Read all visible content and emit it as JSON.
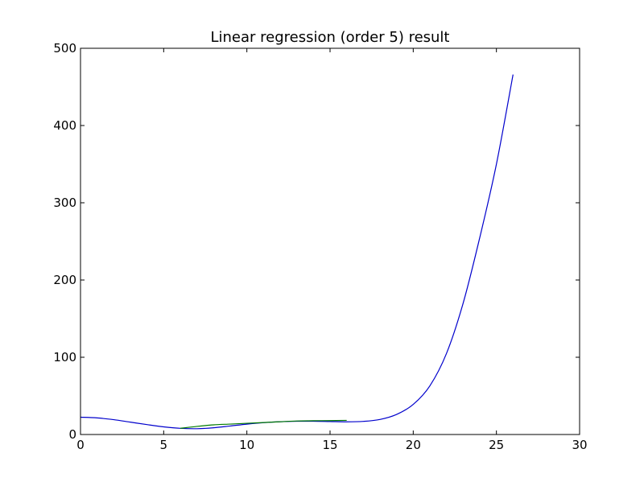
{
  "chart_data": {
    "type": "line",
    "title": "Linear regression (order 5) result",
    "xlabel": "",
    "ylabel": "",
    "xlim": [
      0,
      30
    ],
    "ylim": [
      0,
      500
    ],
    "xticks": [
      "0",
      "5",
      "10",
      "15",
      "20",
      "25",
      "30"
    ],
    "yticks": [
      "0",
      "100",
      "200",
      "300",
      "400",
      "500"
    ],
    "grid": false,
    "colors": {
      "blue_series": "#0000cc",
      "green_series": "#007a00"
    },
    "series": [
      {
        "color_key": "blue_series",
        "x": [
          0,
          1,
          2,
          3,
          4,
          5,
          6,
          7,
          8,
          9,
          10,
          11,
          12,
          13,
          14,
          15,
          16,
          17,
          18,
          19,
          20,
          21,
          22,
          23,
          24,
          25,
          26
        ],
        "y": [
          22.4,
          21.5,
          19.2,
          16.0,
          12.8,
          9.9,
          8.0,
          7.5,
          8.7,
          11.0,
          13.4,
          15.3,
          16.5,
          17.1,
          17.2,
          16.8,
          16.4,
          17.0,
          19.5,
          26.0,
          39.0,
          63.0,
          105.0,
          170.0,
          255.0,
          350.0,
          466.0
        ]
      },
      {
        "color_key": "green_series",
        "x": [
          6,
          7,
          8,
          9,
          10,
          11,
          12,
          13,
          14,
          15,
          16
        ],
        "y": [
          8.0,
          10.5,
          12.5,
          13.5,
          14.5,
          15.5,
          16.5,
          17.5,
          17.8,
          18.0,
          18.3
        ]
      }
    ]
  }
}
